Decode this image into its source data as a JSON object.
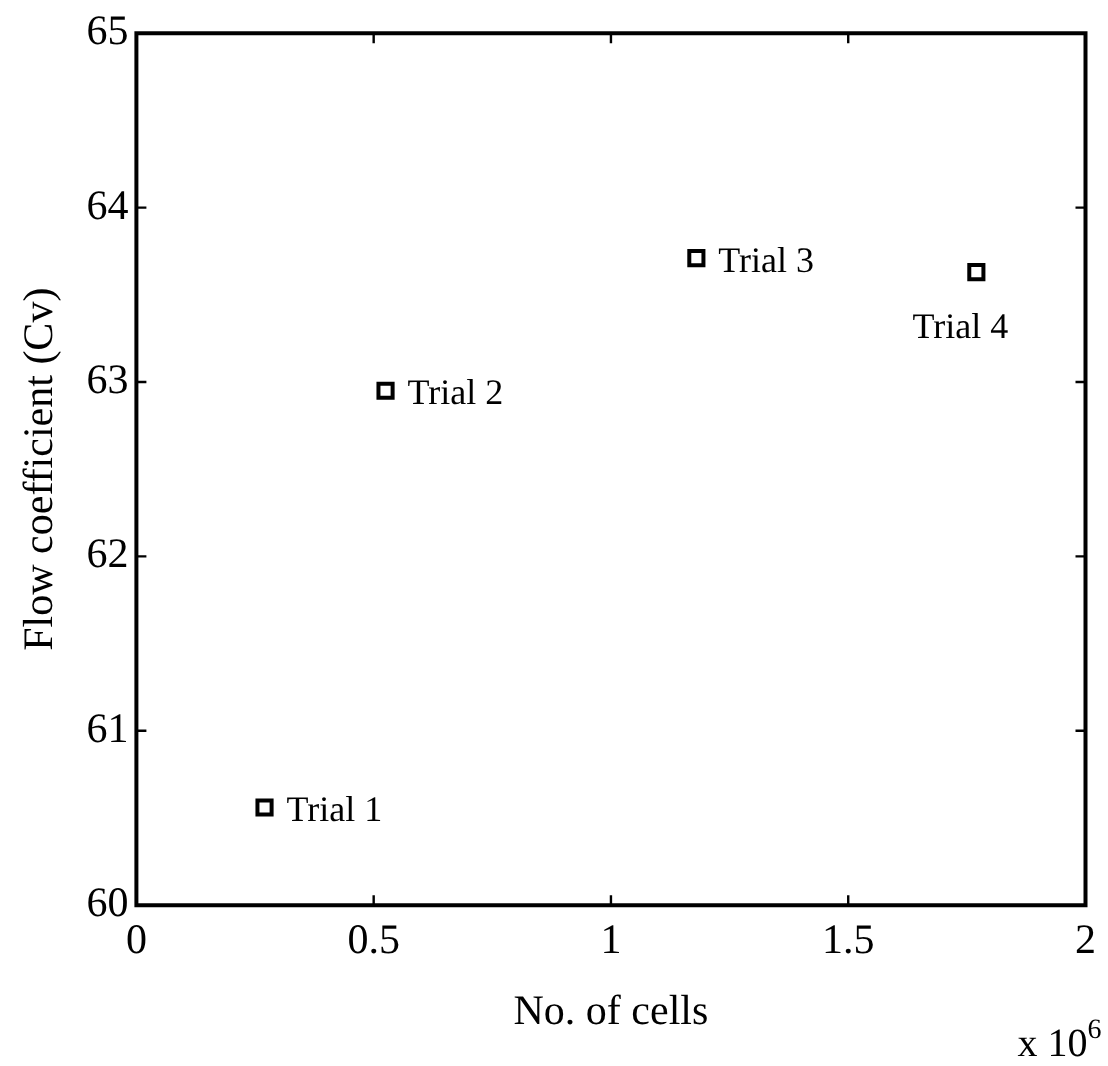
{
  "chart_data": {
    "type": "scatter",
    "xlabel": "No. of cells",
    "ylabel": "Flow coefficient (Cv)",
    "x": [
      0.27,
      0.525,
      1.18,
      1.77
    ],
    "values": [
      60.56,
      62.95,
      63.71,
      63.63
    ],
    "color": "#000000",
    "marker": "square",
    "grid": false,
    "legend": false,
    "xlim": [
      0,
      2
    ],
    "xticks": [
      0,
      0.5,
      1,
      1.5,
      2
    ],
    "ylim": [
      60,
      65
    ],
    "yticks": [
      60,
      61,
      62,
      63,
      64,
      65
    ],
    "annotations": [
      {
        "text": "Trial 1",
        "x": 0.27,
        "y": 60.56
      },
      {
        "text": "Trial 2",
        "x": 0.525,
        "y": 62.95
      },
      {
        "text": "Trial 3",
        "x": 1.18,
        "y": 63.71
      },
      {
        "text": "Trial 4",
        "x": 1.77,
        "y": 63.63
      },
      "x 10$^{6}$"
    ]
  }
}
